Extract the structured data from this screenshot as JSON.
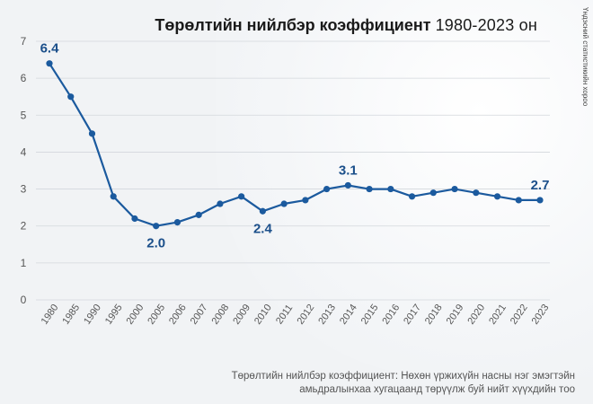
{
  "title": {
    "main": "Төрөлтийн нийлбэр коэффициент",
    "range": "1980-2023 он"
  },
  "source": "Үндэсний статистикийн хороо",
  "footnote": {
    "line1": "Төрөлтийн нийлбэр коэффициент: Нөхөн үржихүйн насны нэг эмэгтэйн",
    "line2": "амьдралынхаа хугацаанд төрүүлж буй нийт хүүхдийн тоо"
  },
  "colors": {
    "line": "#1b5a9e",
    "label": "#1b4f8a",
    "grid": "#d3d7dc",
    "tick": "#555555"
  },
  "chart_data": {
    "type": "line",
    "title": "Төрөлтийн нийлбэр коэффициент 1980-2023 он",
    "xlabel": "",
    "ylabel": "",
    "ylim": [
      0,
      7
    ],
    "yticks": [
      0,
      1,
      2,
      3,
      4,
      5,
      6,
      7
    ],
    "grid": true,
    "categories": [
      "1980",
      "1985",
      "1990",
      "1995",
      "2000",
      "2005",
      "2006",
      "2007",
      "2008",
      "2009",
      "2010",
      "2011",
      "2012",
      "2013",
      "2014",
      "2015",
      "2016",
      "2017",
      "2018",
      "2019",
      "2020",
      "2021",
      "2022",
      "2023"
    ],
    "series": [
      {
        "values": [
          6.4,
          5.5,
          4.5,
          2.8,
          2.2,
          2.0,
          2.1,
          2.3,
          2.6,
          2.8,
          2.4,
          2.6,
          2.7,
          3.0,
          3.1,
          3.0,
          3.0,
          2.8,
          2.9,
          3.0,
          2.9,
          2.8,
          2.7,
          2.7
        ]
      }
    ],
    "data_labels": [
      {
        "index": 0,
        "text": "6.4"
      },
      {
        "index": 5,
        "text": "2.0"
      },
      {
        "index": 10,
        "text": "2.4"
      },
      {
        "index": 14,
        "text": "3.1"
      },
      {
        "index": 23,
        "text": "2.7"
      }
    ]
  }
}
